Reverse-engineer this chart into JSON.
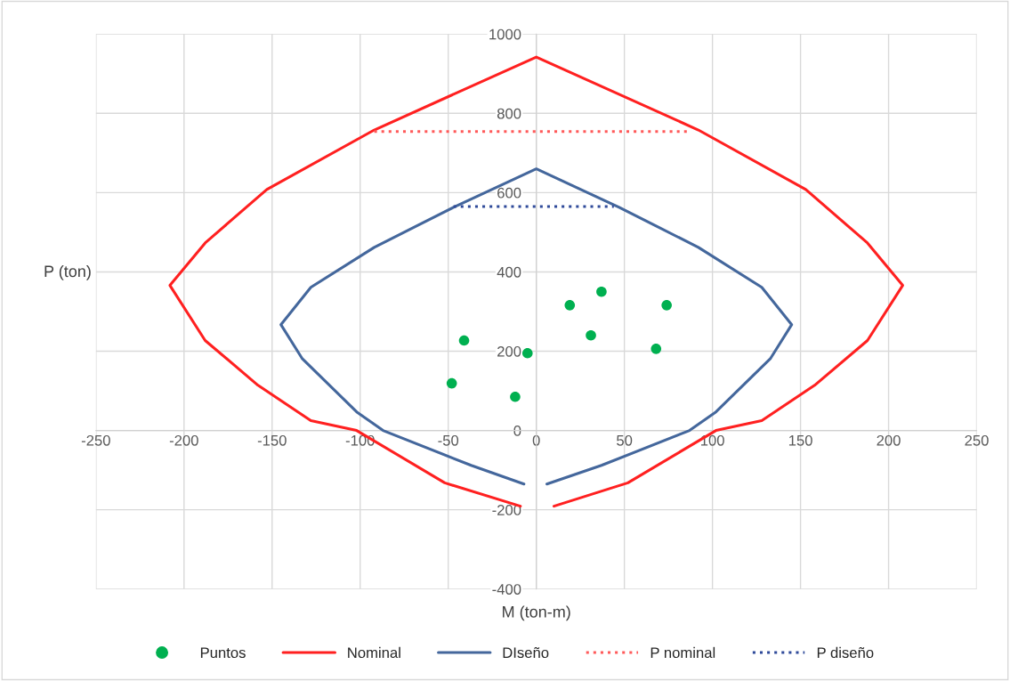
{
  "chart_data": {
    "type": "line",
    "xlabel": "M (ton-m)",
    "ylabel": "P (ton)",
    "xlim": [
      -250,
      250
    ],
    "xticks": [
      -250,
      -200,
      -150,
      -100,
      -50,
      0,
      50,
      100,
      150,
      200,
      250
    ],
    "ylim": [
      -400,
      1000
    ],
    "yticks": [
      -400,
      -200,
      0,
      200,
      400,
      600,
      800,
      1000
    ],
    "grid": true,
    "legend": "bottom",
    "series": [
      {
        "name": "Puntos",
        "type": "scatter",
        "marker": "circle",
        "color": "#00b050",
        "x": [
          -41,
          -48,
          -12,
          -5,
          19,
          37,
          31,
          68,
          74
        ],
        "values": [
          227,
          119,
          85,
          195,
          316,
          350,
          240,
          206,
          316
        ]
      },
      {
        "name": "Nominal",
        "line_style": "solid",
        "color": "#ff2020",
        "x": [
          -9,
          -52,
          -102,
          -128,
          -158,
          -188,
          -208,
          -188,
          -153,
          -92,
          0,
          92,
          153,
          188,
          208,
          188,
          158,
          128,
          102,
          52,
          10
        ],
        "values": [
          -191,
          -132,
          0,
          25,
          114,
          227,
          366,
          473,
          608,
          758,
          942,
          758,
          608,
          473,
          366,
          227,
          114,
          25,
          0,
          -132,
          -191
        ]
      },
      {
        "name": "DIseño",
        "line_style": "solid",
        "color": "#44679c",
        "x": [
          -7,
          -37,
          -87,
          -102,
          -133,
          -145,
          -128,
          -92,
          -47,
          0,
          47,
          92,
          128,
          145,
          133,
          102,
          87,
          37,
          6
        ],
        "values": [
          -135,
          -88,
          0,
          47,
          182,
          267,
          361,
          462,
          563,
          660,
          563,
          462,
          361,
          267,
          182,
          47,
          0,
          -88,
          -135
        ]
      },
      {
        "name": "P nominal",
        "line_style": "dotted",
        "color": "#ff5a5a",
        "x": [
          -92,
          88
        ],
        "values": [
          754,
          754
        ]
      },
      {
        "name": "P diseño",
        "line_style": "dotted",
        "color": "#2f4a9a",
        "x": [
          -47,
          44
        ],
        "values": [
          565,
          565
        ]
      }
    ]
  }
}
